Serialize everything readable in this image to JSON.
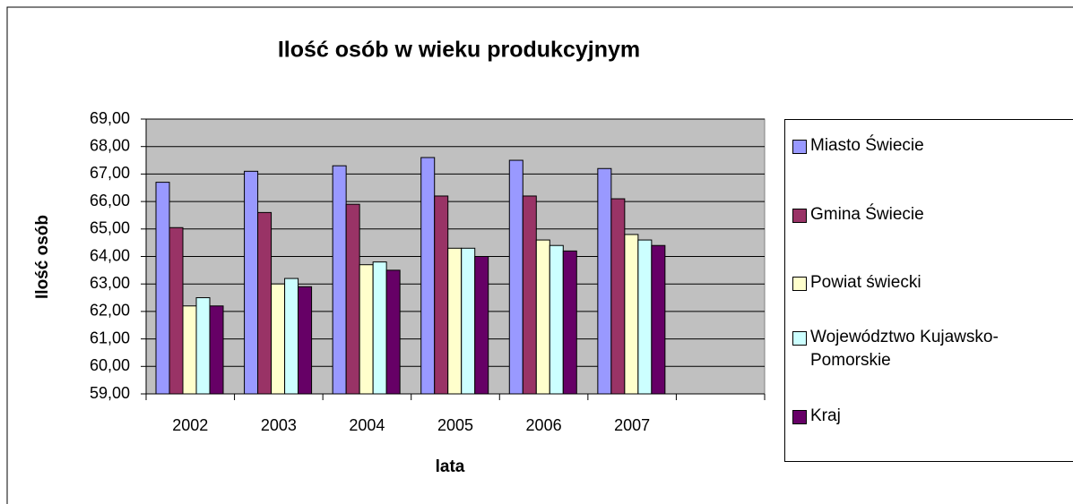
{
  "chart_data": {
    "type": "bar",
    "title": "Ilość osób w wieku produkcyjnym",
    "x_label": "lata",
    "y_label": "Ilość osób",
    "categories": [
      "2002",
      "2003",
      "2004",
      "2005",
      "2006",
      "2007",
      null
    ],
    "series": [
      {
        "name": "Miasto Świecie",
        "color": "#9999ff",
        "values": [
          66.7,
          67.1,
          67.3,
          67.6,
          67.5,
          67.2,
          null
        ]
      },
      {
        "name": "Gmina Świecie",
        "color": "#993366",
        "values": [
          65.05,
          65.6,
          65.9,
          66.2,
          66.2,
          66.1,
          null
        ]
      },
      {
        "name": "Powiat świecki",
        "color": "#ffffcc",
        "values": [
          62.2,
          63.0,
          63.7,
          64.3,
          64.6,
          64.8,
          null
        ]
      },
      {
        "name": "Województwo Kujawsko-Pomorskie",
        "color": "#ccffff",
        "values": [
          62.5,
          63.2,
          63.8,
          64.3,
          64.4,
          64.6,
          null
        ]
      },
      {
        "name": "Kraj",
        "color": "#660066",
        "values": [
          62.2,
          62.9,
          63.5,
          64.0,
          64.2,
          64.4,
          null
        ]
      }
    ],
    "ylim": [
      59,
      69
    ],
    "yticks": [
      {
        "value": 59,
        "label": "59,00"
      },
      {
        "value": 60,
        "label": "60,00"
      },
      {
        "value": 61,
        "label": "61,00"
      },
      {
        "value": 62,
        "label": "62,00"
      },
      {
        "value": 63,
        "label": "63,00"
      },
      {
        "value": 64,
        "label": "64,00"
      },
      {
        "value": 65,
        "label": "65,00"
      },
      {
        "value": 66,
        "label": "66,00"
      },
      {
        "value": 67,
        "label": "67,00"
      },
      {
        "value": 68,
        "label": "68,00"
      },
      {
        "value": 69,
        "label": "69,00"
      }
    ],
    "grid": true,
    "plot_background": "#c0c0c0",
    "legend": "right"
  }
}
